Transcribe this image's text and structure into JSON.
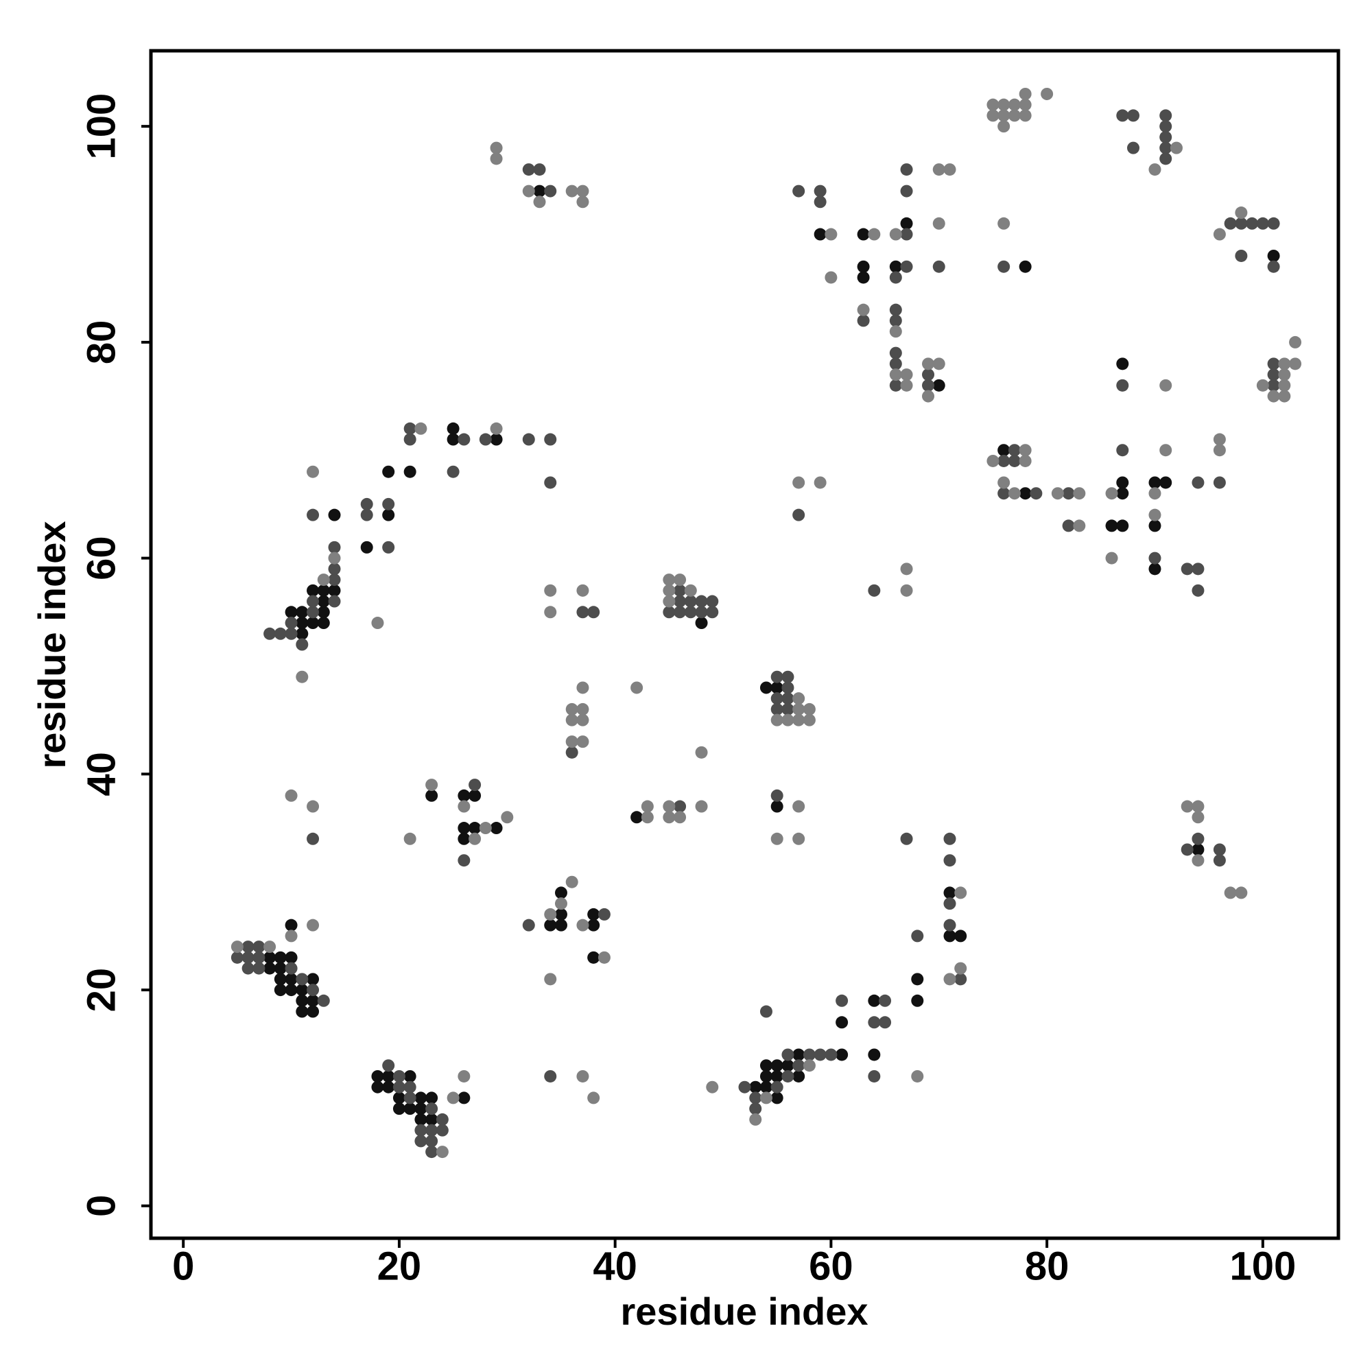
{
  "chart_data": {
    "type": "scatter",
    "x_label": "residue index",
    "y_label": "residue index",
    "xlim": [
      -3,
      107
    ],
    "ylim": [
      -3,
      107
    ],
    "xticks": [
      0,
      20,
      40,
      60,
      80,
      100
    ],
    "yticks": [
      0,
      20,
      40,
      60,
      80,
      100
    ],
    "series": [
      {
        "color": "#111111",
        "x": [
          8,
          9,
          10,
          8,
          9,
          9,
          10,
          9,
          10,
          11,
          11,
          12,
          11,
          12,
          10,
          12,
          18,
          19,
          21,
          18,
          19,
          20,
          22,
          23,
          20,
          21,
          22,
          22,
          23,
          26,
          57,
          61,
          54,
          55,
          56,
          54,
          55,
          57,
          53,
          54,
          55,
          64,
          61,
          64,
          68,
          68,
          71,
          71,
          72,
          11,
          11,
          12,
          13,
          10,
          11,
          13,
          13,
          12,
          13,
          14,
          14,
          17,
          19,
          19,
          21,
          25,
          25,
          29,
          33,
          23,
          26,
          26,
          26,
          27,
          27,
          29,
          35,
          34,
          35,
          35,
          38,
          38,
          38,
          42,
          48,
          54,
          55,
          55,
          59,
          63,
          63,
          63,
          66,
          67,
          70,
          78,
          101,
          87,
          76,
          78,
          86,
          87,
          87,
          87,
          90,
          90,
          90,
          91,
          94
        ],
        "y": [
          23,
          23,
          23,
          22,
          22,
          21,
          21,
          20,
          20,
          20,
          19,
          19,
          18,
          18,
          26,
          21,
          12,
          12,
          12,
          11,
          11,
          10,
          10,
          10,
          9,
          9,
          9,
          8,
          8,
          10,
          14,
          14,
          13,
          13,
          13,
          12,
          12,
          12,
          11,
          11,
          10,
          19,
          17,
          14,
          21,
          19,
          29,
          25,
          25,
          53,
          54,
          54,
          54,
          55,
          55,
          55,
          56,
          57,
          57,
          57,
          64,
          61,
          64,
          68,
          68,
          72,
          71,
          71,
          94,
          38,
          38,
          35,
          34,
          38,
          35,
          35,
          29,
          26,
          27,
          26,
          27,
          26,
          23,
          36,
          54,
          48,
          48,
          37,
          90,
          90,
          87,
          86,
          87,
          91,
          76,
          87,
          88,
          78,
          70,
          66,
          63,
          67,
          66,
          63,
          67,
          63,
          59,
          67,
          33
        ]
      },
      {
        "color": "#4d4d4d",
        "x": [
          6,
          7,
          5,
          6,
          7,
          6,
          7,
          10,
          11,
          12,
          13,
          19,
          20,
          20,
          21,
          21,
          23,
          24,
          22,
          23,
          24,
          22,
          23,
          23,
          54,
          56,
          58,
          59,
          60,
          57,
          56,
          52,
          55,
          53,
          53,
          61,
          65,
          64,
          65,
          64,
          68,
          71,
          71,
          71,
          71,
          72,
          67,
          8,
          9,
          10,
          10,
          12,
          12,
          14,
          14,
          14,
          14,
          11,
          12,
          17,
          17,
          19,
          19,
          21,
          21,
          25,
          26,
          28,
          32,
          34,
          34,
          32,
          33,
          34,
          37,
          38,
          36,
          26,
          27,
          12,
          32,
          39,
          34,
          46,
          46,
          46,
          47,
          48,
          49,
          45,
          46,
          47,
          48,
          49,
          55,
          56,
          56,
          55,
          56,
          55,
          56,
          55,
          57,
          64,
          57,
          59,
          59,
          63,
          66,
          66,
          66,
          66,
          66,
          66,
          67,
          67,
          67,
          67,
          69,
          69,
          70,
          76,
          87,
          88,
          88,
          91,
          91,
          91,
          91,
          91,
          97,
          98,
          98,
          99,
          100,
          101,
          101,
          101,
          101,
          101,
          87,
          77,
          76,
          77,
          76,
          79,
          82,
          82,
          87,
          90,
          94,
          96,
          93,
          94,
          94,
          93,
          94,
          96,
          96
        ],
        "y": [
          24,
          24,
          23,
          23,
          23,
          22,
          22,
          22,
          21,
          20,
          19,
          13,
          12,
          11,
          11,
          10,
          9,
          8,
          7,
          7,
          7,
          6,
          6,
          5,
          18,
          14,
          14,
          14,
          14,
          13,
          12,
          11,
          11,
          10,
          9,
          19,
          19,
          17,
          17,
          12,
          25,
          34,
          32,
          28,
          26,
          21,
          34,
          53,
          53,
          53,
          54,
          55,
          56,
          56,
          58,
          59,
          61,
          52,
          64,
          65,
          64,
          65,
          61,
          71,
          72,
          68,
          71,
          71,
          71,
          71,
          67,
          96,
          96,
          94,
          55,
          55,
          42,
          32,
          39,
          34,
          26,
          27,
          12,
          37,
          57,
          56,
          56,
          56,
          56,
          55,
          55,
          55,
          55,
          55,
          49,
          49,
          48,
          47,
          47,
          46,
          46,
          38,
          64,
          57,
          94,
          94,
          93,
          82,
          86,
          83,
          82,
          79,
          78,
          76,
          96,
          94,
          90,
          87,
          77,
          76,
          87,
          87,
          101,
          101,
          98,
          101,
          100,
          99,
          98,
          97,
          91,
          91,
          88,
          91,
          91,
          91,
          87,
          78,
          77,
          76,
          76,
          70,
          69,
          69,
          66,
          66,
          66,
          63,
          70,
          60,
          67,
          67,
          59,
          59,
          57,
          33,
          34,
          33,
          32
        ]
      },
      {
        "color": "#808080",
        "x": [
          5,
          8,
          10,
          12,
          24,
          25,
          26,
          58,
          54,
          53,
          49,
          68,
          72,
          72,
          71,
          13,
          14,
          18,
          11,
          12,
          22,
          29,
          29,
          29,
          32,
          33,
          36,
          37,
          37,
          34,
          34,
          37,
          36,
          36,
          36,
          37,
          37,
          37,
          37,
          42,
          48,
          10,
          12,
          21,
          23,
          26,
          27,
          28,
          30,
          34,
          34,
          35,
          36,
          37,
          39,
          37,
          38,
          43,
          43,
          45,
          45,
          46,
          48,
          45,
          46,
          45,
          47,
          45,
          57,
          57,
          58,
          55,
          56,
          57,
          58,
          55,
          57,
          57,
          57,
          59,
          67,
          67,
          60,
          60,
          63,
          64,
          66,
          66,
          66,
          67,
          67,
          69,
          69,
          70,
          70,
          70,
          71,
          75,
          76,
          77,
          78,
          75,
          76,
          77,
          78,
          78,
          80,
          76,
          76,
          90,
          92,
          96,
          98,
          100,
          101,
          102,
          102,
          102,
          102,
          103,
          103,
          91,
          78,
          75,
          78,
          76,
          77,
          81,
          83,
          83,
          86,
          86,
          90,
          90,
          91,
          96,
          96,
          93,
          94,
          94,
          94,
          97,
          98
        ],
        "y": [
          24,
          24,
          25,
          26,
          5,
          10,
          12,
          13,
          10,
          8,
          11,
          12,
          29,
          22,
          21,
          58,
          60,
          54,
          49,
          68,
          72,
          72,
          98,
          97,
          94,
          93,
          94,
          94,
          93,
          57,
          55,
          57,
          46,
          45,
          43,
          48,
          46,
          45,
          43,
          48,
          42,
          38,
          37,
          34,
          39,
          37,
          34,
          35,
          36,
          27,
          21,
          28,
          30,
          26,
          23,
          12,
          10,
          37,
          36,
          37,
          36,
          36,
          37,
          58,
          58,
          57,
          57,
          56,
          47,
          46,
          46,
          45,
          45,
          45,
          45,
          34,
          37,
          34,
          67,
          67,
          59,
          57,
          90,
          86,
          83,
          90,
          90,
          81,
          77,
          77,
          76,
          78,
          75,
          96,
          91,
          78,
          96,
          102,
          102,
          102,
          102,
          101,
          101,
          101,
          101,
          103,
          103,
          100,
          91,
          96,
          98,
          90,
          92,
          76,
          75,
          78,
          77,
          76,
          75,
          80,
          78,
          76,
          70,
          69,
          69,
          67,
          66,
          66,
          66,
          63,
          66,
          60,
          66,
          64,
          70,
          71,
          70,
          37,
          37,
          36,
          32,
          29,
          29
        ]
      }
    ]
  }
}
